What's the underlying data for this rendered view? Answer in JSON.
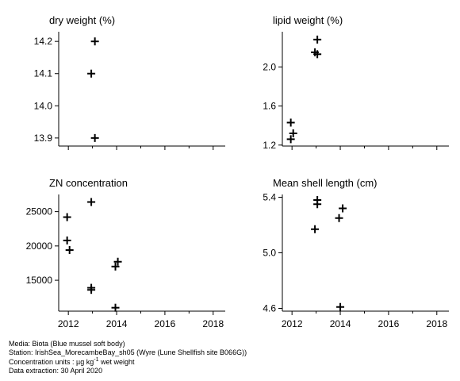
{
  "chart_data": [
    {
      "type": "scatter",
      "title": "dry weight (%)",
      "xlabel": "",
      "ylabel": "",
      "xlim": [
        2011.6,
        2018.5
      ],
      "ylim": [
        13.875,
        14.23
      ],
      "xticks": [
        2012,
        2014,
        2016,
        2018
      ],
      "yticks": [
        13.9,
        14.0,
        14.1,
        14.2
      ],
      "ytick_labels": [
        "13.9",
        "14.0",
        "14.1",
        "14.2"
      ],
      "show_xtick_labels": false,
      "points": [
        [
          2013.1,
          14.2
        ],
        [
          2012.95,
          14.1
        ],
        [
          2013.1,
          13.9
        ]
      ]
    },
    {
      "type": "scatter",
      "title": "lipid weight (%)",
      "xlabel": "",
      "ylabel": "",
      "xlim": [
        2011.6,
        2018.5
      ],
      "ylim": [
        1.19,
        2.36
      ],
      "xticks": [
        2012,
        2014,
        2016,
        2018
      ],
      "yticks": [
        1.2,
        1.6,
        2.0
      ],
      "ytick_labels": [
        "1.2",
        "1.6",
        "2.0"
      ],
      "show_xtick_labels": false,
      "points": [
        [
          2011.95,
          1.43
        ],
        [
          2012.05,
          1.32
        ],
        [
          2011.95,
          1.26
        ],
        [
          2013.05,
          2.28
        ],
        [
          2012.95,
          2.15
        ],
        [
          2013.05,
          2.13
        ]
      ]
    },
    {
      "type": "scatter",
      "title": "ZN concentration",
      "xlabel": "",
      "ylabel": "",
      "xlim": [
        2011.6,
        2018.5
      ],
      "ylim": [
        10500,
        27500
      ],
      "xticks": [
        2012,
        2014,
        2016,
        2018
      ],
      "yticks": [
        15000,
        20000,
        25000
      ],
      "ytick_labels": [
        "15000",
        "20000",
        "25000"
      ],
      "show_xtick_labels": true,
      "xtick_labels": [
        "2012",
        "2014",
        "2016",
        "2018"
      ],
      "points": [
        [
          2011.95,
          24200
        ],
        [
          2011.95,
          20800
        ],
        [
          2012.05,
          19400
        ],
        [
          2012.95,
          26400
        ],
        [
          2012.95,
          13900
        ],
        [
          2012.95,
          13600
        ],
        [
          2014.05,
          17700
        ],
        [
          2013.95,
          17000
        ],
        [
          2013.95,
          11000
        ]
      ]
    },
    {
      "type": "scatter",
      "title": "Mean shell length (cm)",
      "xlabel": "",
      "ylabel": "",
      "xlim": [
        2011.6,
        2018.5
      ],
      "ylim": [
        4.58,
        5.42
      ],
      "xticks": [
        2012,
        2014,
        2016,
        2018
      ],
      "yticks": [
        4.6,
        5.0,
        5.4
      ],
      "ytick_labels": [
        "4.6",
        "5.0",
        "5.4"
      ],
      "show_xtick_labels": true,
      "xtick_labels": [
        "2012",
        "2014",
        "2016",
        "2018"
      ],
      "points": [
        [
          2013.05,
          5.38
        ],
        [
          2013.05,
          5.35
        ],
        [
          2012.95,
          5.17
        ],
        [
          2014.1,
          5.32
        ],
        [
          2013.95,
          5.25
        ],
        [
          2014.0,
          4.61
        ]
      ]
    }
  ],
  "footer": {
    "media": "Media: Biota (Blue mussel soft body)",
    "station": "Station: IrishSea_MorecambeBay_sh05 (Wyre (Lune Shellfish site B066G))",
    "units_prefix": "Concentration units : µg kg",
    "units_exp": "-1",
    "units_suffix": " wet weight",
    "extraction": "Data extraction: 30 April 2020"
  }
}
